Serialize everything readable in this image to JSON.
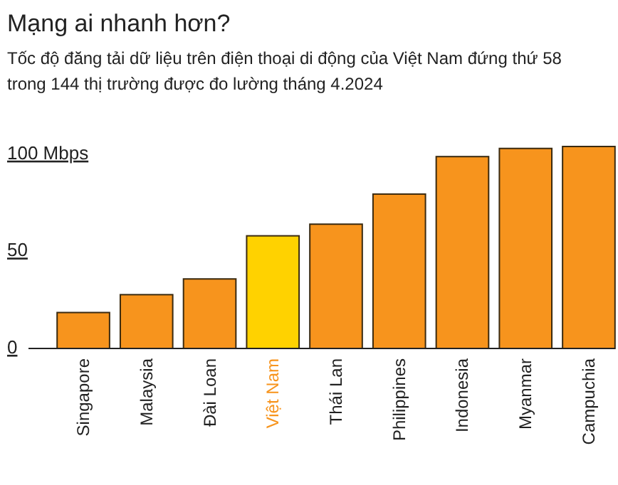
{
  "chart_data": {
    "type": "bar",
    "title": "Mạng ai nhanh hơn?",
    "subtitle": "Tốc độ đăng tải dữ liệu trên điện thoại di động của Việt Nam đứng thứ 58 trong 144 thị trường được đo lường tháng 4.2024",
    "categories": [
      "Singapore",
      "Malaysia",
      "Đài Loan",
      "Việt Nam",
      "Thái Lan",
      "Philippines",
      "Indonesia",
      "Myanmar",
      "Campuchia"
    ],
    "values": [
      18.5,
      27.7,
      35.8,
      58,
      64,
      79.5,
      98.8,
      103,
      104
    ],
    "colors": [
      "#f7941d",
      "#f7941d",
      "#f7941d",
      "#ffd200",
      "#f7941d",
      "#f7941d",
      "#f7941d",
      "#f7941d",
      "#f7941d"
    ],
    "ylim": [
      0,
      104
    ],
    "yticks": [
      0,
      50,
      {
        "value": 100,
        "label": "100 Mbps"
      }
    ]
  }
}
